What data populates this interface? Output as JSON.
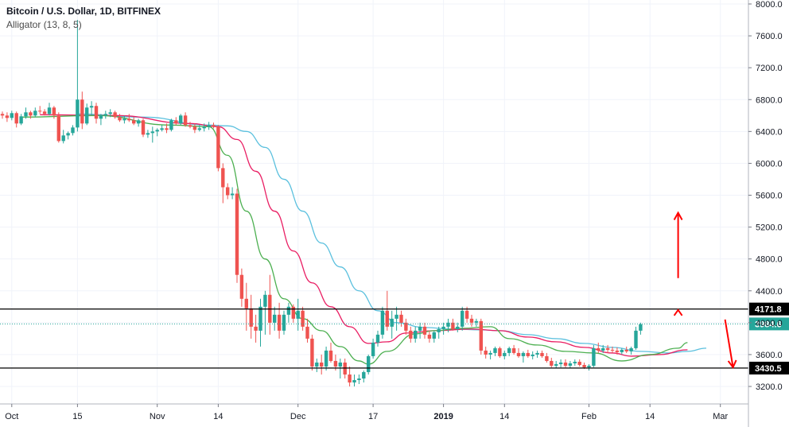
{
  "header": {
    "symbol_title": "Bitcoin / U.S. Dollar, 1D, BITFINEX",
    "indicator": "Alligator (13, 8, 5)"
  },
  "chart_data": {
    "type": "candlestick",
    "y_ticks": [
      3200,
      3600,
      4000,
      4400,
      4800,
      5200,
      5600,
      6000,
      6400,
      6800,
      7200,
      7600,
      8000
    ],
    "y_tick_labels": [
      "3200.0",
      "3600.0",
      "4000.0",
      "4400.0",
      "4800.0",
      "5200.0",
      "5600.0",
      "6000.0",
      "6400.0",
      "6800.0",
      "7200.0",
      "7600.0",
      "8000.0"
    ],
    "ylim": [
      2980,
      8050
    ],
    "x_ticks": [
      {
        "label": "Oct",
        "index": 2,
        "bold": false
      },
      {
        "label": "15",
        "index": 16,
        "bold": false
      },
      {
        "label": "Nov",
        "index": 33,
        "bold": false
      },
      {
        "label": "14",
        "index": 46,
        "bold": false
      },
      {
        "label": "Dec",
        "index": 63,
        "bold": false
      },
      {
        "label": "17",
        "index": 79,
        "bold": false
      },
      {
        "label": "2019",
        "index": 94,
        "bold": true
      },
      {
        "label": "14",
        "index": 107,
        "bold": false
      },
      {
        "label": "Feb",
        "index": 125,
        "bold": false
      },
      {
        "label": "14",
        "index": 138,
        "bold": false
      },
      {
        "label": "Mar",
        "index": 153,
        "bold": false
      }
    ],
    "x_count": 164,
    "candles": [
      [
        6620,
        6650,
        6560,
        6600
      ],
      [
        6600,
        6640,
        6520,
        6570
      ],
      [
        6570,
        6660,
        6540,
        6630
      ],
      [
        6630,
        6650,
        6450,
        6500
      ],
      [
        6500,
        6620,
        6480,
        6590
      ],
      [
        6590,
        6700,
        6560,
        6640
      ],
      [
        6640,
        6660,
        6560,
        6600
      ],
      [
        6600,
        6700,
        6580,
        6660
      ],
      [
        6660,
        6720,
        6620,
        6650
      ],
      [
        6650,
        6680,
        6600,
        6620
      ],
      [
        6620,
        6760,
        6600,
        6700
      ],
      [
        6700,
        6720,
        6560,
        6600
      ],
      [
        6600,
        6640,
        6260,
        6280
      ],
      [
        6280,
        6420,
        6250,
        6350
      ],
      [
        6350,
        6400,
        6300,
        6380
      ],
      [
        6380,
        6480,
        6350,
        6450
      ],
      [
        6450,
        7800,
        6400,
        6800
      ],
      [
        6800,
        6900,
        6430,
        6500
      ],
      [
        6500,
        6750,
        6480,
        6700
      ],
      [
        6700,
        6780,
        6600,
        6720
      ],
      [
        6720,
        6760,
        6500,
        6560
      ],
      [
        6560,
        6620,
        6480,
        6600
      ],
      [
        6600,
        6660,
        6560,
        6620
      ],
      [
        6620,
        6680,
        6580,
        6640
      ],
      [
        6640,
        6660,
        6560,
        6580
      ],
      [
        6580,
        6620,
        6520,
        6540
      ],
      [
        6540,
        6600,
        6500,
        6560
      ],
      [
        6560,
        6620,
        6520,
        6540
      ],
      [
        6540,
        6580,
        6480,
        6500
      ],
      [
        6500,
        6560,
        6460,
        6540
      ],
      [
        6540,
        6560,
        6330,
        6360
      ],
      [
        6360,
        6420,
        6320,
        6380
      ],
      [
        6380,
        6460,
        6260,
        6400
      ],
      [
        6400,
        6440,
        6340,
        6420
      ],
      [
        6420,
        6480,
        6400,
        6440
      ],
      [
        6440,
        6500,
        6380,
        6420
      ],
      [
        6420,
        6560,
        6400,
        6540
      ],
      [
        6540,
        6580,
        6480,
        6500
      ],
      [
        6500,
        6620,
        6480,
        6600
      ],
      [
        6600,
        6640,
        6460,
        6480
      ],
      [
        6480,
        6520,
        6440,
        6460
      ],
      [
        6460,
        6500,
        6380,
        6420
      ],
      [
        6420,
        6480,
        6400,
        6440
      ],
      [
        6440,
        6500,
        6400,
        6460
      ],
      [
        6460,
        6520,
        6420,
        6480
      ],
      [
        6480,
        6510,
        6440,
        6460
      ],
      [
        6460,
        6480,
        5900,
        5940
      ],
      [
        5940,
        6000,
        5500,
        5700
      ],
      [
        5700,
        5750,
        5550,
        5600
      ],
      [
        5600,
        5700,
        5550,
        5620
      ],
      [
        5620,
        5680,
        4500,
        4600
      ],
      [
        4600,
        4680,
        4200,
        4300
      ],
      [
        4300,
        4500,
        3900,
        4180
      ],
      [
        4180,
        4350,
        3800,
        3950
      ],
      [
        3950,
        4100,
        3750,
        3900
      ],
      [
        3900,
        4300,
        3700,
        4200
      ],
      [
        4200,
        4400,
        3850,
        4350
      ],
      [
        4350,
        4600,
        3850,
        4000
      ],
      [
        4000,
        4200,
        3900,
        4100
      ],
      [
        4100,
        4250,
        3800,
        3900
      ],
      [
        3900,
        4150,
        3850,
        4100
      ],
      [
        4100,
        4250,
        4000,
        4200
      ],
      [
        4200,
        4230,
        4000,
        4050
      ],
      [
        4050,
        4300,
        3900,
        4150
      ],
      [
        4150,
        4200,
        3900,
        3950
      ],
      [
        3950,
        4050,
        3750,
        3800
      ],
      [
        3800,
        3850,
        3400,
        3450
      ],
      [
        3450,
        3550,
        3380,
        3500
      ],
      [
        3500,
        3600,
        3350,
        3450
      ],
      [
        3450,
        3700,
        3400,
        3650
      ],
      [
        3650,
        3750,
        3500,
        3520
      ],
      [
        3520,
        3600,
        3400,
        3450
      ],
      [
        3450,
        3550,
        3300,
        3500
      ],
      [
        3500,
        3550,
        3300,
        3350
      ],
      [
        3350,
        3450,
        3200,
        3250
      ],
      [
        3250,
        3350,
        3200,
        3280
      ],
      [
        3280,
        3350,
        3230,
        3300
      ],
      [
        3300,
        3400,
        3250,
        3380
      ],
      [
        3380,
        3600,
        3350,
        3580
      ],
      [
        3580,
        3800,
        3550,
        3750
      ],
      [
        3750,
        3900,
        3700,
        3850
      ],
      [
        3850,
        4200,
        3800,
        4150
      ],
      [
        4150,
        4400,
        3900,
        3950
      ],
      [
        3950,
        4150,
        3800,
        4050
      ],
      [
        4050,
        4200,
        3900,
        4100
      ],
      [
        4100,
        4150,
        3950,
        4000
      ],
      [
        4000,
        4050,
        3850,
        3900
      ],
      [
        3900,
        3950,
        3750,
        3800
      ],
      [
        3800,
        3950,
        3750,
        3900
      ],
      [
        3900,
        4000,
        3800,
        3950
      ],
      [
        3950,
        4000,
        3800,
        3850
      ],
      [
        3850,
        3900,
        3750,
        3800
      ],
      [
        3800,
        3900,
        3750,
        3880
      ],
      [
        3880,
        3950,
        3800,
        3920
      ],
      [
        3920,
        4000,
        3850,
        3950
      ],
      [
        3950,
        4050,
        3880,
        4000
      ],
      [
        4000,
        4050,
        3900,
        3920
      ],
      [
        3920,
        4000,
        3880,
        3950
      ],
      [
        3950,
        4200,
        3900,
        4150
      ],
      [
        4150,
        4200,
        4000,
        4050
      ],
      [
        4050,
        4100,
        3950,
        4000
      ],
      [
        4000,
        4050,
        3950,
        4020
      ],
      [
        4020,
        4050,
        3600,
        3650
      ],
      [
        3650,
        3700,
        3550,
        3600
      ],
      [
        3600,
        3650,
        3540,
        3620
      ],
      [
        3620,
        3700,
        3580,
        3680
      ],
      [
        3680,
        3700,
        3560,
        3580
      ],
      [
        3580,
        3650,
        3540,
        3620
      ],
      [
        3620,
        3700,
        3580,
        3680
      ],
      [
        3680,
        3720,
        3600,
        3620
      ],
      [
        3620,
        3680,
        3560,
        3580
      ],
      [
        3580,
        3640,
        3500,
        3620
      ],
      [
        3620,
        3660,
        3560,
        3580
      ],
      [
        3580,
        3640,
        3540,
        3600
      ],
      [
        3600,
        3650,
        3560,
        3620
      ],
      [
        3620,
        3650,
        3560,
        3580
      ],
      [
        3580,
        3620,
        3500,
        3520
      ],
      [
        3520,
        3560,
        3440,
        3460
      ],
      [
        3460,
        3520,
        3430,
        3480
      ],
      [
        3480,
        3540,
        3440,
        3500
      ],
      [
        3500,
        3540,
        3440,
        3460
      ],
      [
        3460,
        3520,
        3430,
        3490
      ],
      [
        3490,
        3540,
        3460,
        3510
      ],
      [
        3510,
        3540,
        3450,
        3470
      ],
      [
        3470,
        3500,
        3420,
        3440
      ],
      [
        3440,
        3480,
        3400,
        3460
      ],
      [
        3460,
        3720,
        3440,
        3680
      ],
      [
        3680,
        3750,
        3620,
        3650
      ],
      [
        3650,
        3720,
        3620,
        3680
      ],
      [
        3680,
        3720,
        3620,
        3660
      ],
      [
        3660,
        3700,
        3620,
        3650
      ],
      [
        3650,
        3690,
        3600,
        3630
      ],
      [
        3630,
        3680,
        3600,
        3660
      ],
      [
        3660,
        3700,
        3620,
        3640
      ],
      [
        3640,
        3700,
        3600,
        3680
      ],
      [
        3680,
        3950,
        3660,
        3900
      ],
      [
        3900,
        4000,
        3850,
        3980
      ]
    ],
    "alligator": {
      "jaw_color": "#5bc0de",
      "teeth_color": "#e91e63",
      "lips_color": "#4caf50",
      "jaw": [
        [
          16,
          6620
        ],
        [
          30,
          6580
        ],
        [
          44,
          6480
        ],
        [
          48,
          6470
        ],
        [
          52,
          6400
        ],
        [
          56,
          6200
        ],
        [
          60,
          5800
        ],
        [
          64,
          5400
        ],
        [
          68,
          5000
        ],
        [
          72,
          4700
        ],
        [
          76,
          4400
        ],
        [
          80,
          4150
        ],
        [
          84,
          4000
        ],
        [
          90,
          3940
        ],
        [
          96,
          3920
        ],
        [
          102,
          3910
        ],
        [
          106,
          3900
        ],
        [
          112,
          3850
        ],
        [
          118,
          3800
        ],
        [
          124,
          3740
        ],
        [
          130,
          3690
        ],
        [
          136,
          3640
        ],
        [
          142,
          3620
        ],
        [
          146,
          3640
        ],
        [
          150,
          3680
        ]
      ],
      "teeth": [
        [
          8,
          6610
        ],
        [
          24,
          6600
        ],
        [
          40,
          6500
        ],
        [
          46,
          6460
        ],
        [
          50,
          6300
        ],
        [
          54,
          5900
        ],
        [
          58,
          5400
        ],
        [
          62,
          4900
        ],
        [
          66,
          4500
        ],
        [
          70,
          4200
        ],
        [
          74,
          3950
        ],
        [
          78,
          3740
        ],
        [
          82,
          3760
        ],
        [
          86,
          3870
        ],
        [
          92,
          3900
        ],
        [
          100,
          3920
        ],
        [
          106,
          3900
        ],
        [
          112,
          3820
        ],
        [
          118,
          3760
        ],
        [
          124,
          3690
        ],
        [
          130,
          3620
        ],
        [
          134,
          3580
        ],
        [
          140,
          3600
        ],
        [
          146,
          3660
        ]
      ],
      "lips": [
        [
          4,
          6580
        ],
        [
          20,
          6600
        ],
        [
          36,
          6480
        ],
        [
          44,
          6460
        ],
        [
          48,
          6100
        ],
        [
          52,
          5400
        ],
        [
          56,
          4800
        ],
        [
          60,
          4300
        ],
        [
          64,
          4050
        ],
        [
          68,
          3900
        ],
        [
          72,
          3700
        ],
        [
          76,
          3520
        ],
        [
          78,
          3480
        ],
        [
          82,
          3640
        ],
        [
          88,
          3860
        ],
        [
          92,
          3900
        ],
        [
          98,
          3930
        ],
        [
          104,
          3950
        ],
        [
          108,
          3800
        ],
        [
          114,
          3720
        ],
        [
          120,
          3640
        ],
        [
          126,
          3620
        ],
        [
          132,
          3520
        ],
        [
          138,
          3600
        ],
        [
          144,
          3680
        ],
        [
          146,
          3750
        ]
      ]
    },
    "levels": [
      {
        "label": "4171.8",
        "value": 4171.8,
        "style": "solid-black"
      },
      {
        "label": "3984.6",
        "value": 3984.6,
        "style": "dotted-teal"
      },
      {
        "label": "3430.5",
        "value": 3430.5,
        "style": "solid-black"
      }
    ],
    "annotations": [
      {
        "type": "arrow-up",
        "x_index": 144,
        "from": 4560,
        "to": 5380,
        "color": "#ff0000"
      },
      {
        "type": "chevron-up",
        "x_index": 144,
        "at": 4160,
        "color": "#ff0000"
      },
      {
        "type": "arrow-down",
        "x_index": 154,
        "from": 4040,
        "to": 3440,
        "color": "#ff0000"
      }
    ],
    "up_color": "#26a69a",
    "down_color": "#ef5350"
  }
}
